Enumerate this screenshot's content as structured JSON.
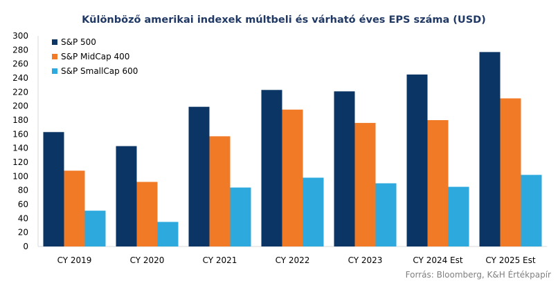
{
  "chart_data": {
    "type": "bar",
    "title": "Különböző amerikai indexek múltbeli  és várható éves EPS száma (USD)",
    "categories": [
      "CY 2019",
      "CY 2020",
      "CY 2021",
      "CY 2022",
      "CY 2023",
      "CY 2024 Est",
      "CY 2025 Est"
    ],
    "series": [
      {
        "name": "S&P 500",
        "color": "#0b3564",
        "values": [
          163,
          143,
          199,
          223,
          221,
          245,
          277
        ]
      },
      {
        "name": "S&P MidCap 400",
        "color": "#f07a26",
        "values": [
          108,
          92,
          157,
          195,
          176,
          180,
          211
        ]
      },
      {
        "name": "S&P SmallCap 600",
        "color": "#2ea9de",
        "values": [
          51,
          35,
          84,
          98,
          90,
          85,
          102
        ]
      }
    ],
    "ylim": [
      0,
      300
    ],
    "yticks": [
      "0",
      "20",
      "40",
      "60",
      "80",
      "100",
      "120",
      "140",
      "160",
      "180",
      "200",
      "220",
      "240",
      "260",
      "280",
      "300"
    ],
    "legend_position": "top-left",
    "grid": false
  },
  "source": "Forrás: Bloomberg, K&H Értékpapír"
}
